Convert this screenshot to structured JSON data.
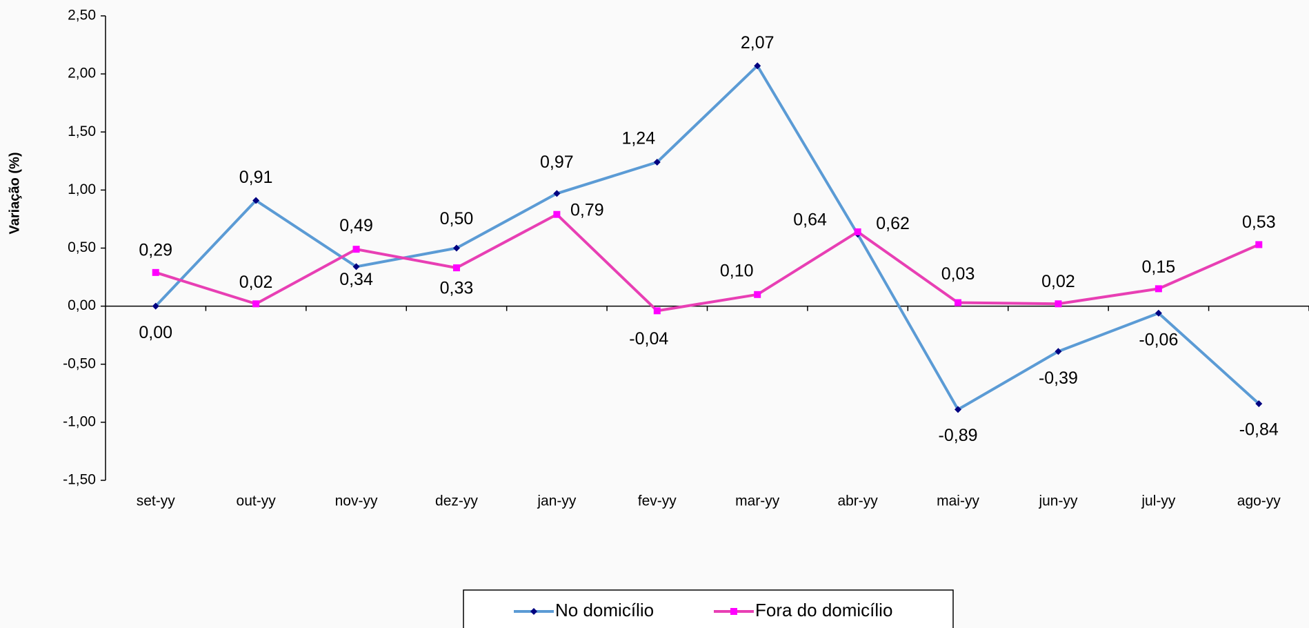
{
  "chart_data": {
    "type": "line",
    "y_label": "Variação (%)",
    "categories": [
      "set-yy",
      "out-yy",
      "nov-yy",
      "dez-yy",
      "jan-yy",
      "fev-yy",
      "mar-yy",
      "abr-yy",
      "mai-yy",
      "jun-yy",
      "jul-yy",
      "ago-yy"
    ],
    "series": [
      {
        "name": "No domicílio",
        "color": "#5b9bd5",
        "marker_color": "#000080",
        "marker": "diamond",
        "values": [
          0.0,
          0.91,
          0.34,
          0.5,
          0.97,
          1.24,
          2.07,
          0.62,
          -0.89,
          -0.39,
          -0.06,
          -0.84
        ],
        "value_labels": [
          "0,00",
          "0,91",
          "0,34",
          "0,50",
          "0,97",
          "1,24",
          "2,07",
          "0,62",
          "-0,89",
          "-0,39",
          "-0,06",
          "-0,84"
        ]
      },
      {
        "name": "Fora do domicílio",
        "color": "#e83fb4",
        "marker_color": "#ff00ff",
        "marker": "square",
        "values": [
          0.29,
          0.02,
          0.49,
          0.33,
          0.79,
          -0.04,
          0.1,
          0.64,
          0.03,
          0.02,
          0.15,
          0.53
        ],
        "value_labels": [
          "0,29",
          "0,02",
          "0,49",
          "0,33",
          "0,79",
          "-0,04",
          "0,10",
          "0,64",
          "0,03",
          "0,02",
          "0,15",
          "0,53"
        ]
      }
    ],
    "ylim": [
      -1.5,
      2.5
    ],
    "yticks": [
      {
        "value": -1.5,
        "label": "-1,50"
      },
      {
        "value": -1.0,
        "label": "-1,00"
      },
      {
        "value": -0.5,
        "label": "-0,50"
      },
      {
        "value": 0.0,
        "label": "0,00"
      },
      {
        "value": 0.5,
        "label": "0,50"
      },
      {
        "value": 1.0,
        "label": "1,00"
      },
      {
        "value": 1.5,
        "label": "1,50"
      },
      {
        "value": 2.0,
        "label": "2,00"
      },
      {
        "value": 2.5,
        "label": "2,50"
      }
    ],
    "grid": false,
    "legend": "bottom"
  }
}
